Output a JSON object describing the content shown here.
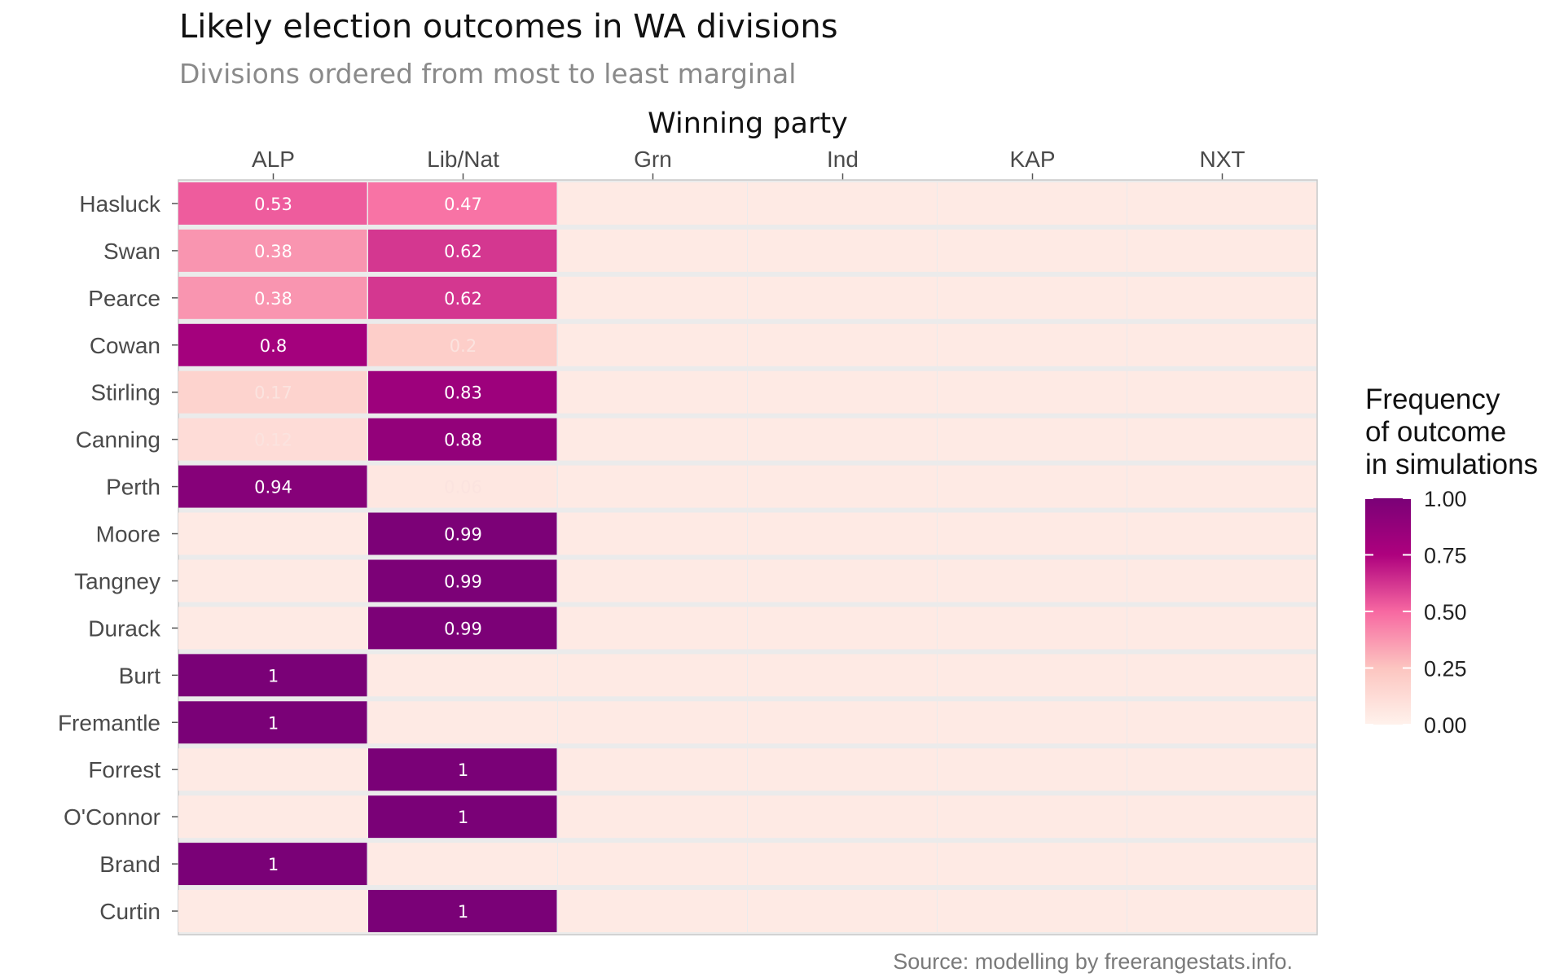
{
  "chart_data": {
    "type": "heatmap",
    "title": "Likely election outcomes in WA divisions",
    "subtitle": "Divisions ordered from most to least marginal",
    "xlabel": "Winning party",
    "ylabel": "",
    "x_categories": [
      "ALP",
      "Lib/Nat",
      "Grn",
      "Ind",
      "KAP",
      "NXT"
    ],
    "y_categories": [
      "Hasluck",
      "Swan",
      "Pearce",
      "Cowan",
      "Stirling",
      "Canning",
      "Perth",
      "Moore",
      "Tangney",
      "Durack",
      "Burt",
      "Fremantle",
      "Forrest",
      "O'Connor",
      "Brand",
      "Curtin"
    ],
    "cells": [
      {
        "division": "Hasluck",
        "party": "ALP",
        "value": 0.53,
        "label": "0.53"
      },
      {
        "division": "Hasluck",
        "party": "Lib/Nat",
        "value": 0.47,
        "label": "0.47"
      },
      {
        "division": "Swan",
        "party": "ALP",
        "value": 0.38,
        "label": "0.38"
      },
      {
        "division": "Swan",
        "party": "Lib/Nat",
        "value": 0.62,
        "label": "0.62"
      },
      {
        "division": "Pearce",
        "party": "ALP",
        "value": 0.38,
        "label": "0.38"
      },
      {
        "division": "Pearce",
        "party": "Lib/Nat",
        "value": 0.62,
        "label": "0.62"
      },
      {
        "division": "Cowan",
        "party": "ALP",
        "value": 0.8,
        "label": "0.8"
      },
      {
        "division": "Cowan",
        "party": "Lib/Nat",
        "value": 0.2,
        "label": "0.2"
      },
      {
        "division": "Stirling",
        "party": "ALP",
        "value": 0.17,
        "label": "0.17"
      },
      {
        "division": "Stirling",
        "party": "Lib/Nat",
        "value": 0.83,
        "label": "0.83"
      },
      {
        "division": "Canning",
        "party": "ALP",
        "value": 0.12,
        "label": "0.12"
      },
      {
        "division": "Canning",
        "party": "Lib/Nat",
        "value": 0.88,
        "label": "0.88"
      },
      {
        "division": "Perth",
        "party": "ALP",
        "value": 0.94,
        "label": "0.94"
      },
      {
        "division": "Perth",
        "party": "Lib/Nat",
        "value": 0.06,
        "label": "0.06"
      },
      {
        "division": "Moore",
        "party": "Lib/Nat",
        "value": 0.99,
        "label": "0.99"
      },
      {
        "division": "Tangney",
        "party": "Lib/Nat",
        "value": 0.99,
        "label": "0.99"
      },
      {
        "division": "Durack",
        "party": "Lib/Nat",
        "value": 0.99,
        "label": "0.99"
      },
      {
        "division": "Burt",
        "party": "ALP",
        "value": 1,
        "label": "1"
      },
      {
        "division": "Fremantle",
        "party": "ALP",
        "value": 1,
        "label": "1"
      },
      {
        "division": "Forrest",
        "party": "Lib/Nat",
        "value": 1,
        "label": "1"
      },
      {
        "division": "O'Connor",
        "party": "Lib/Nat",
        "value": 1,
        "label": "1"
      },
      {
        "division": "Brand",
        "party": "ALP",
        "value": 1,
        "label": "1"
      },
      {
        "division": "Curtin",
        "party": "Lib/Nat",
        "value": 1,
        "label": "1"
      }
    ],
    "legend": {
      "title_lines": [
        "Frequency",
        "of outcome",
        "in simulations"
      ],
      "ticks": [
        {
          "value": 1.0,
          "label": "1.00"
        },
        {
          "value": 0.75,
          "label": "0.75"
        },
        {
          "value": 0.5,
          "label": "0.50"
        },
        {
          "value": 0.25,
          "label": "0.25"
        },
        {
          "value": 0.0,
          "label": "0.00"
        }
      ],
      "placement": "right"
    },
    "color_scale": {
      "stops": [
        {
          "value": 0.0,
          "color": "#fff2ec"
        },
        {
          "value": 0.25,
          "color": "#fcc5c0"
        },
        {
          "value": 0.5,
          "color": "#f768a1"
        },
        {
          "value": 0.75,
          "color": "#ae017e"
        },
        {
          "value": 1.0,
          "color": "#7a0177"
        }
      ],
      "empty_color": "#feeae4",
      "separator_color": "#e6e6e6"
    },
    "caption": "Source: modelling by freerangestats.info."
  }
}
